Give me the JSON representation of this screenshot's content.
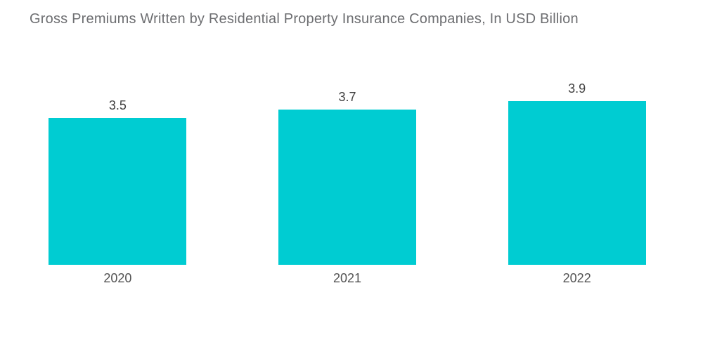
{
  "title": "Gross Premiums Written by Residential Property Insurance Companies, In USD Billion",
  "colors": {
    "bar": "#00ccd2",
    "title_text": "#6d6e71",
    "value_label_text": "#404040",
    "year_label_text": "#545454",
    "background": "#ffffff"
  },
  "chart_data": {
    "type": "bar",
    "categories": [
      "2020",
      "2021",
      "2022"
    ],
    "values": [
      3.5,
      3.7,
      3.9
    ],
    "data_labels": [
      "3.5",
      "3.7",
      "3.9"
    ],
    "title": "Gross Premiums Written by Residential Property Insurance Companies, In USD Billion",
    "xlabel": "",
    "ylabel": "",
    "ylim": [
      0,
      3.9
    ],
    "grid": false,
    "legend": null,
    "axis_lines": false,
    "bar_color": "#00ccd2"
  }
}
